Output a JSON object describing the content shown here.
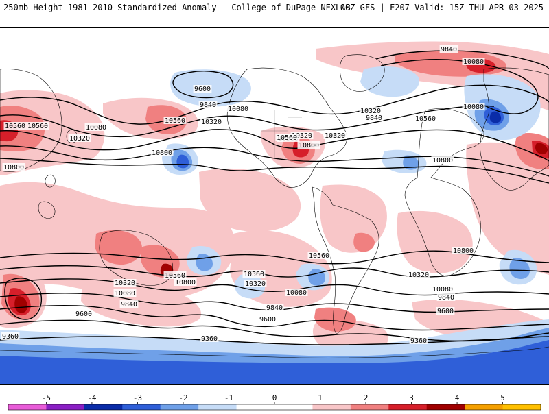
{
  "header": {
    "title": "250mb Height 1981-2010 Standardized Anomaly | College of DuPage NEXLAB",
    "run_info": "00Z GFS | F207 Valid: 15Z THU APR 03 2025"
  },
  "map": {
    "colors": {
      "ocean": "#ffffff",
      "coast": "#000000",
      "contour": "#000000",
      "anom_pos1": "#f8c6c8",
      "anom_pos2": "#f08080",
      "anom_pos3": "#d61f2a",
      "anom_pos4": "#a00000",
      "anom_neg1": "#c6dcf7",
      "anom_neg2": "#6fa0e8",
      "anom_neg3": "#2f5fd8",
      "anom_neg4": "#0a2ca8"
    },
    "contour_labels": [
      "9840",
      "10080",
      "9600",
      "9840",
      "10080",
      "10560",
      "10320",
      "10080",
      "10320",
      "10560",
      "10800",
      "10560",
      "10800",
      "10320",
      "10080",
      "9840",
      "10320",
      "10560",
      "10320",
      "10800",
      "10800",
      "10560",
      "10320",
      "10080",
      "9840",
      "9600",
      "9360",
      "10800",
      "10560",
      "10320",
      "10080",
      "9840",
      "9600",
      "9360",
      "10800",
      "10560",
      "10320",
      "10080",
      "9840",
      "9600",
      "9360",
      "10800",
      "10560",
      "10560"
    ]
  },
  "colorbar": {
    "ticks": [
      "-5",
      "-4",
      "-3",
      "-2",
      "-1",
      "0",
      "1",
      "2",
      "3",
      "4",
      "5"
    ],
    "colors": [
      "#e85cd8",
      "#8a1fc4",
      "#0a2ca8",
      "#2f5fd8",
      "#6fa0e8",
      "#c6dcf7",
      "#ffffff",
      "#ffffff",
      "#f8c6c8",
      "#f08080",
      "#d61f2a",
      "#a00000",
      "#f5a000",
      "#ffc000"
    ]
  }
}
